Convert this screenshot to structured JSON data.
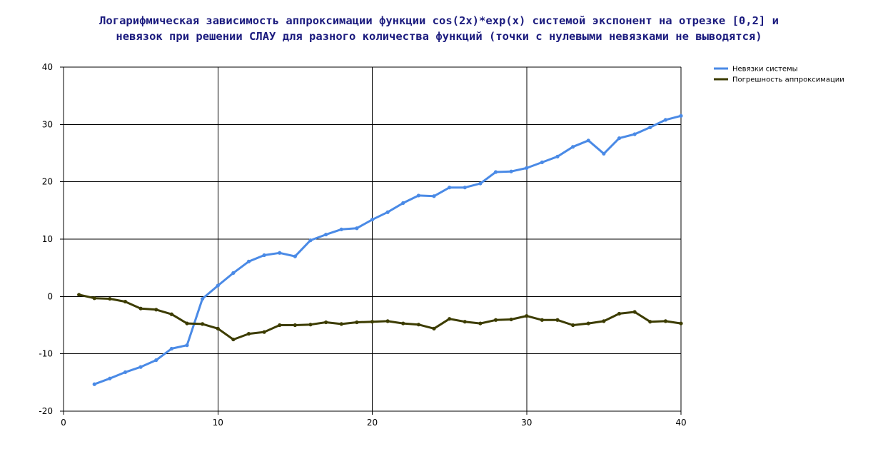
{
  "chart_data": {
    "type": "line",
    "title_lines": [
      "Логарифмическая зависимость аппроксимации функции cos(2x)*exp(x) системой экспонент на отрезке [0,2] и",
      "невязок при решении СЛАУ для разного количества функций (точки с нулевыми невязками не выводятся)"
    ],
    "xlabel": "",
    "ylabel": "",
    "xlim": [
      0,
      40
    ],
    "ylim": [
      -20,
      40
    ],
    "x_ticks": [
      0,
      10,
      20,
      30,
      40
    ],
    "y_ticks": [
      -20,
      -10,
      0,
      10,
      20,
      30,
      40
    ],
    "x_tick_labels": [
      "0",
      "10",
      "20",
      "30",
      "40"
    ],
    "y_tick_labels": [
      "-20",
      "-10",
      "0",
      "10",
      "20",
      "30",
      "40"
    ],
    "grid": true,
    "legend_position": "top-right",
    "series": [
      {
        "name": "Невязки системы",
        "color": "#4a8ae6",
        "x": [
          2,
          3,
          4,
          5,
          6,
          7,
          8,
          9,
          10,
          11,
          12,
          13,
          14,
          15,
          16,
          17,
          18,
          19,
          20,
          21,
          22,
          23,
          24,
          25,
          26,
          27,
          28,
          29,
          30,
          31,
          32,
          33,
          34,
          35,
          36,
          37,
          38,
          39,
          40
        ],
        "y": [
          -15.3,
          -14.3,
          -13.2,
          -12.3,
          -11.1,
          -9.1,
          -8.5,
          -0.4,
          1.9,
          4.1,
          6.1,
          7.2,
          7.6,
          7.0,
          9.8,
          10.8,
          11.7,
          11.9,
          13.4,
          14.7,
          16.3,
          17.6,
          17.5,
          19.0,
          19.0,
          19.7,
          21.7,
          21.8,
          22.4,
          23.4,
          24.4,
          26.1,
          27.2,
          24.9,
          27.6,
          28.3,
          29.5,
          30.8,
          31.5
        ]
      },
      {
        "name": "Погрешность аппроксимации",
        "color": "#3c3c00",
        "x": [
          1,
          2,
          3,
          4,
          5,
          6,
          7,
          8,
          9,
          10,
          11,
          12,
          13,
          14,
          15,
          16,
          17,
          18,
          19,
          20,
          21,
          22,
          23,
          24,
          25,
          26,
          27,
          28,
          29,
          30,
          31,
          32,
          33,
          34,
          35,
          36,
          37,
          38,
          39,
          40
        ],
        "y": [
          0.3,
          -0.3,
          -0.4,
          -0.9,
          -2.1,
          -2.3,
          -3.1,
          -4.7,
          -4.8,
          -5.6,
          -7.5,
          -6.5,
          -6.2,
          -5.0,
          -5.0,
          -4.9,
          -4.5,
          -4.8,
          -4.5,
          -4.4,
          -4.3,
          -4.7,
          -4.9,
          -5.6,
          -3.9,
          -4.4,
          -4.7,
          -4.1,
          -4.0,
          -3.4,
          -4.1,
          -4.1,
          -5.0,
          -4.7,
          -4.3,
          -3.0,
          -2.7,
          -4.4,
          -4.3,
          -4.7
        ]
      }
    ]
  }
}
